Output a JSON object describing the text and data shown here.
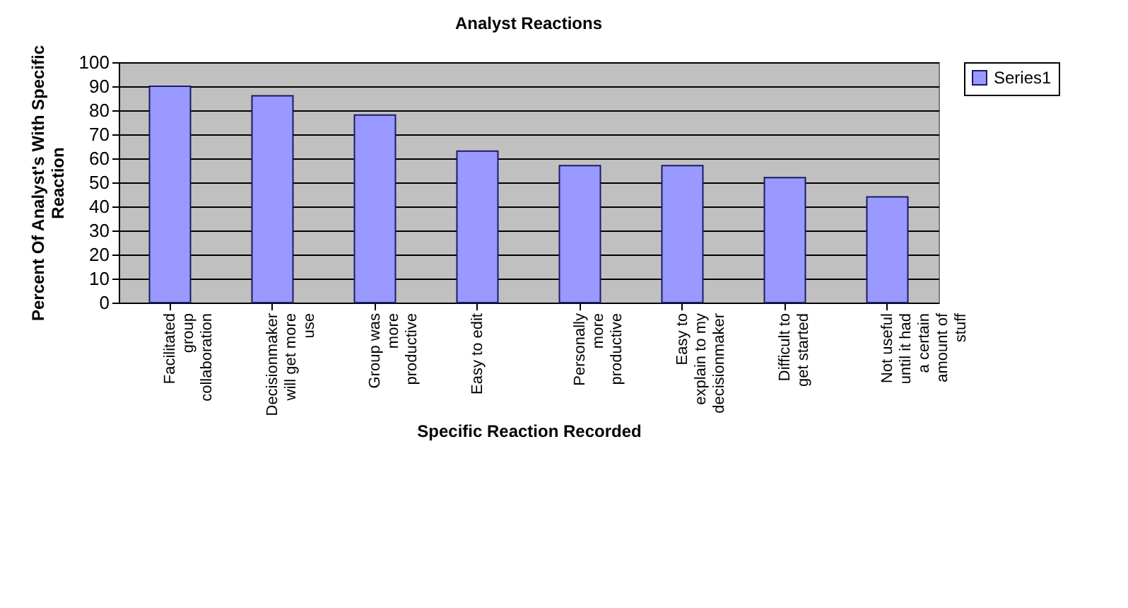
{
  "chart_data": {
    "type": "bar",
    "title": "Analyst Reactions",
    "xlabel": "Specific Reaction Recorded",
    "ylabel": "Percent Of Analyst's With Specific Reaction",
    "categories": [
      "Facilitated group collaboration",
      "Decisionmaker will get more use",
      "Group was more productive",
      "Easy to edit",
      "Personally more productive",
      "Easy to explain to my decisionmaker",
      "Difficult to get started",
      "Not useful until it had a certain amount of stuff"
    ],
    "series": [
      {
        "name": "Series1",
        "color": "#9999ff",
        "values": [
          90,
          86,
          78,
          63,
          57,
          57,
          52,
          44
        ]
      }
    ],
    "ylim": [
      0,
      100
    ],
    "yticks": [
      0,
      10,
      20,
      30,
      40,
      50,
      60,
      70,
      80,
      90,
      100
    ],
    "grid": true,
    "legend": "right"
  }
}
